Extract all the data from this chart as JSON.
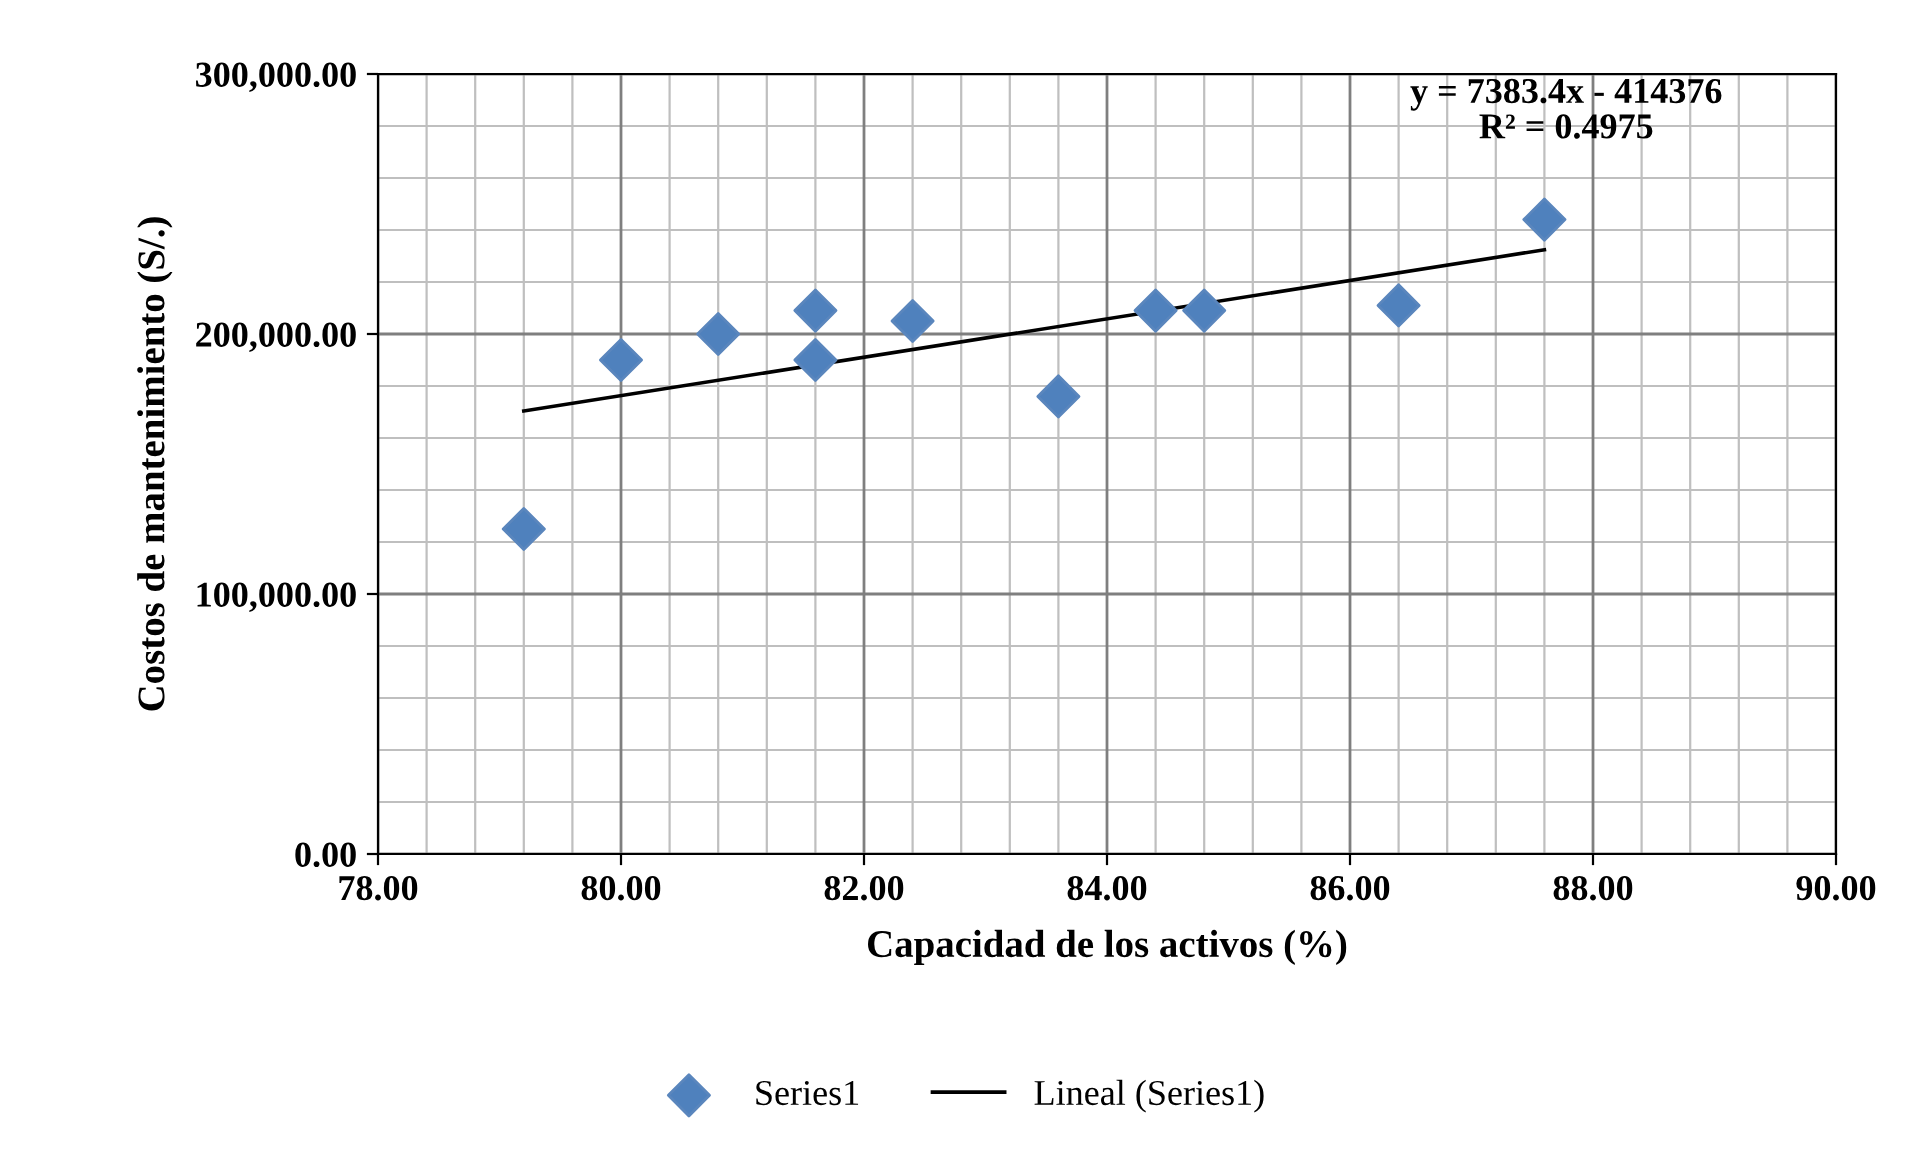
{
  "chart_data": {
    "type": "scatter",
    "xlabel": "Capacidad de los activos (%)",
    "ylabel": "Costos de mantenimiento (S/.)",
    "xlim": [
      78,
      90
    ],
    "ylim": [
      0,
      300000
    ],
    "xticks": [
      {
        "value": 78,
        "label": "78.00"
      },
      {
        "value": 80,
        "label": "80.00"
      },
      {
        "value": 82,
        "label": "82.00"
      },
      {
        "value": 84,
        "label": "84.00"
      },
      {
        "value": 86,
        "label": "86.00"
      },
      {
        "value": 88,
        "label": "88.00"
      },
      {
        "value": 90,
        "label": "90.00"
      }
    ],
    "yticks": [
      {
        "value": 0,
        "label": "0.00"
      },
      {
        "value": 100000,
        "label": "100,000.00"
      },
      {
        "value": 200000,
        "label": "200,000.00"
      },
      {
        "value": 300000,
        "label": "300,000.00"
      }
    ],
    "grid": true,
    "legend": "bottom",
    "series": [
      {
        "name": "Series1",
        "marker": "diamond",
        "color": "#4f81bd",
        "x": [
          79.2,
          80.0,
          80.8,
          81.6,
          81.6,
          82.4,
          83.6,
          84.4,
          84.8,
          86.4,
          87.6
        ],
        "values": [
          125000,
          190000,
          200000,
          209000,
          190000,
          205000,
          176000,
          209000,
          209000,
          211000,
          244000
        ]
      },
      {
        "name": "Lineal (Series1)",
        "type": "line",
        "color": "#000000",
        "line_style": "solid",
        "x": [
          79.2,
          87.6
        ],
        "values": [
          170400,
          232400
        ]
      }
    ],
    "annotations": [
      "y = 7383.4x - 414376\nR² = 0.4975"
    ]
  }
}
